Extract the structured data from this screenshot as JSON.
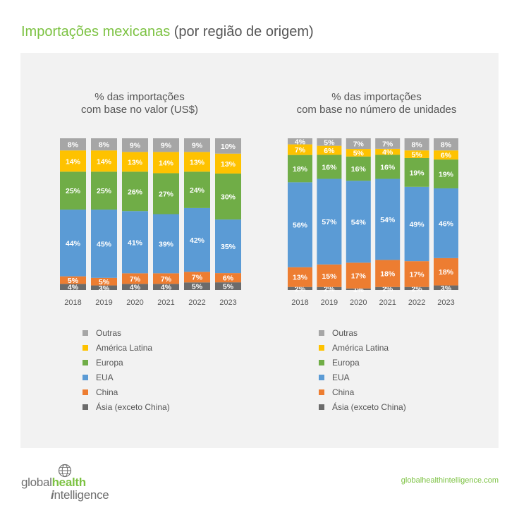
{
  "page": {
    "title_main": "Importações mexicanas",
    "title_rest": "(por região de origem)",
    "logo_part1": "global",
    "logo_part2": "health",
    "logo_part3": "i",
    "logo_part4": "ntelligence",
    "url": "globalhealthintelligence.com"
  },
  "colors": {
    "Outras": "#a6a6a6",
    "América Latina": "#fec200",
    "Europa": "#70ad47",
    "EUA": "#5b9bd5",
    "China": "#ed7d31",
    "Ásia (exceto China)": "#6b6b6b",
    "title_green": "#7cc242"
  },
  "chart_data": [
    {
      "type": "bar",
      "stacked": true,
      "title": [
        "% das importações",
        "com base no valor (US$)"
      ],
      "categories": [
        "2018",
        "2019",
        "2020",
        "2021",
        "2022",
        "2023"
      ],
      "series": [
        {
          "name": "Ásia (exceto China)",
          "values": [
            4,
            3,
            4,
            4,
            5,
            5
          ],
          "labels": [
            "4%",
            "3%",
            "4%",
            "4%",
            "5%",
            "5%"
          ]
        },
        {
          "name": "China",
          "values": [
            5,
            5,
            7,
            7,
            7,
            6
          ],
          "labels": [
            "5%",
            "5%",
            "7%",
            "7%",
            "7%",
            "6%"
          ]
        },
        {
          "name": "EUA",
          "values": [
            44,
            45,
            41,
            39,
            42,
            35
          ],
          "labels": [
            "44%",
            "45%",
            "41%",
            "39%",
            "42%",
            "35%"
          ]
        },
        {
          "name": "Europa",
          "values": [
            25,
            25,
            26,
            27,
            24,
            30
          ],
          "labels": [
            "25%",
            "25%",
            "26%",
            "27%",
            "24%",
            "30%"
          ]
        },
        {
          "name": "América Latina",
          "values": [
            14,
            14,
            13,
            14,
            13,
            13
          ],
          "labels": [
            "14%",
            "14%",
            "13%",
            "14%",
            "13%",
            "13%"
          ]
        },
        {
          "name": "Outras",
          "values": [
            8,
            8,
            9,
            9,
            9,
            10
          ],
          "labels": [
            "8%",
            "8%",
            "9%",
            "9%",
            "9%",
            "10%"
          ]
        }
      ],
      "legend": [
        "Outras",
        "América Latina",
        "Europa",
        "EUA",
        "China",
        "Ásia (exceto China)"
      ],
      "legend_position": "bottom-left"
    },
    {
      "type": "bar",
      "stacked": true,
      "title": [
        "% das importações",
        "com base no número de unidades"
      ],
      "categories": [
        "2018",
        "2019",
        "2020",
        "2021",
        "2022",
        "2023"
      ],
      "series": [
        {
          "name": "Ásia (exceto China)",
          "values": [
            2,
            2,
            1,
            2,
            2,
            3
          ],
          "labels": [
            "2%",
            "2%",
            "1%",
            "2%",
            "2%",
            "3%"
          ]
        },
        {
          "name": "China",
          "values": [
            13,
            15,
            17,
            18,
            17,
            18
          ],
          "labels": [
            "13%",
            "15%",
            "17%",
            "18%",
            "17%",
            "18%"
          ]
        },
        {
          "name": "EUA",
          "values": [
            56,
            57,
            54,
            54,
            49,
            46
          ],
          "labels": [
            "56%",
            "57%",
            "54%",
            "54%",
            "49%",
            "46%"
          ]
        },
        {
          "name": "Europa",
          "values": [
            18,
            16,
            16,
            16,
            19,
            19
          ],
          "labels": [
            "18%",
            "16%",
            "16%",
            "16%",
            "19%",
            "19%"
          ]
        },
        {
          "name": "América Latina",
          "values": [
            7,
            6,
            5,
            4,
            5,
            6
          ],
          "labels": [
            "7%",
            "6%",
            "5%",
            "4%",
            "5%",
            "6%"
          ]
        },
        {
          "name": "Outras",
          "values": [
            4,
            5,
            7,
            7,
            8,
            8
          ],
          "labels": [
            "4%",
            "5%",
            "7%",
            "7%",
            "8%",
            "8%"
          ]
        }
      ],
      "legend": [
        "Outras",
        "América Latina",
        "Europa",
        "EUA",
        "China",
        "Ásia (exceto China)"
      ],
      "legend_position": "bottom-left"
    }
  ]
}
